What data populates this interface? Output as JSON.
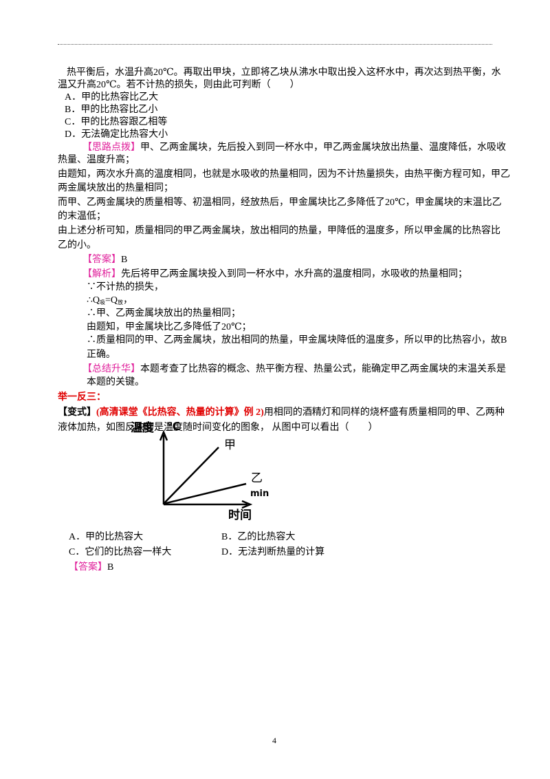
{
  "problem": {
    "lines": [
      "热平衡后，水温升高20℃。再取出甲块，立即将乙块从沸水中取出投入这杯水中，再次达到热平衡，水",
      "温又升高20℃。若不计热的损失，则由此可判断（　　）"
    ],
    "options": [
      "A．甲的比热容比乙大",
      "B．甲的比热容比乙小",
      "C．甲的比热容跟乙相等",
      "D．无法确定比热容大小"
    ]
  },
  "hint": {
    "tag": "【思路点拨】",
    "lines": [
      "甲、乙两金属块，先后投入到同一杯水中，甲乙两金属块放出热量、温度降低，水吸收",
      "热量、温度升高；",
      "由题知，两次水升高的温度相同，也就是水吸收的热量相同，因为不计热量损失，由热平衡方程可知，甲乙",
      "两金属块放出的热量相同；",
      "而甲、乙两金属块的质量相等、初温相同，经放热后，甲金属块比乙多降低了20℃，甲金属块的末温比乙",
      "的末温低；",
      "由上述分析可知，质量相同的甲乙两金属块，放出相同的热量，甲降低的温度多，所以甲金属的比热容比",
      "乙的小。"
    ]
  },
  "answer": {
    "tag": "【答案】",
    "text": "B"
  },
  "analysis": {
    "tag": "【解析】",
    "first": "先后将甲乙两金属块投入到同一杯水中，水升高的温度相同，水吸收的热量相同；",
    "because": "∵不计热的损失，",
    "equation": {
      "q1": "∴Q",
      "sub1": "吸",
      "eq": "=Q",
      "sub2": "放",
      "end": "，"
    },
    "lines": [
      "∴甲、乙两金属块放出的热量相同；",
      "由题知，甲金属块比乙多降低了20℃；",
      "∴质量相同的甲、乙两金属块，放出相同的热量，甲金属块降低的温度多，所以甲的比热容小，故B",
      "正确。"
    ]
  },
  "summary": {
    "tag": "【总结升华】",
    "lines": [
      "本题考查了比热容的概念、热平衡方程、热量公式，能确定甲乙两金属块的末温关系是",
      "本题的关键。"
    ]
  },
  "section": "举一反三：",
  "variant": {
    "tag": "【变式】",
    "source": "(高清课堂《比热容、热量的计算》例 2)",
    "lines": [
      "用相同的酒精灯和同样的烧杯盛有质量相同的甲、乙两种",
      "液体加热，如图反映的是温度随时间变化的图象，  从图中可以看出（　　）"
    ],
    "figure": {
      "y_label": "温度",
      "y_unit": "℃",
      "x_label": "时间",
      "line_1": "甲",
      "line_2": "乙",
      "unit": "min"
    },
    "options": [
      "A．甲的比热容大",
      "B．乙的比热容大",
      "C．它们的比热容一样大",
      "D．无法判断热量的计算"
    ],
    "answer": {
      "tag": "【答案】",
      "text": "B"
    }
  },
  "page_number": "4"
}
